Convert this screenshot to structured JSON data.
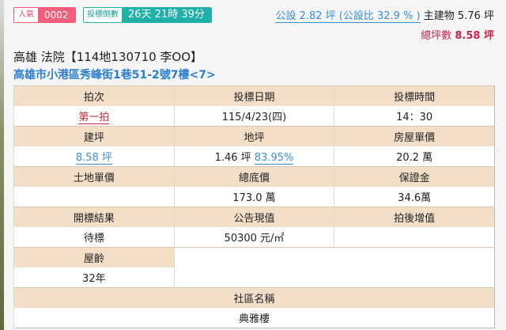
{
  "popularity": {
    "label": "人氣",
    "value": "0002"
  },
  "countdown": {
    "label": "投標倒數",
    "value": "26天 21時 39分"
  },
  "public_area": "公設 2.82 坪 (公設比 32.9 % )",
  "main_building": "主建物 5.76 坪",
  "total_label": "總坪數",
  "total_value": "8.58 坪",
  "title": "高雄 法院【114地130710 李OO】",
  "address": "高雄市小港區秀峰街1巷51-2號7樓<7>",
  "table": {
    "auction_round_label": "拍次",
    "auction_round": "第一拍",
    "bid_date_label": "投標日期",
    "bid_date": "115/4/23(四)",
    "bid_time_label": "投標時間",
    "bid_time": "14：30",
    "building_area_label": "建坪",
    "building_area": "8.58 坪",
    "land_area_label": "地坪",
    "land_area": "1.46 坪",
    "land_ratio": "83.95%",
    "house_unit_price_label": "房屋單價",
    "house_unit_price": "20.2 萬",
    "land_unit_price_label": "土地單價",
    "land_unit_price": "",
    "base_price_label": "總底價",
    "base_price": "173.0 萬",
    "deposit_label": "保證金",
    "deposit": "34.6萬",
    "result_label": "開標結果",
    "result": "待標",
    "announced_value_label": "公告現值",
    "announced_value": "50300 元/㎡",
    "post_auction_gain_label": "拍後增值",
    "post_auction_gain": "",
    "house_age_label": "屋齡",
    "house_age": "32年",
    "community_label": "社區名稱",
    "community": "典雅樓"
  }
}
